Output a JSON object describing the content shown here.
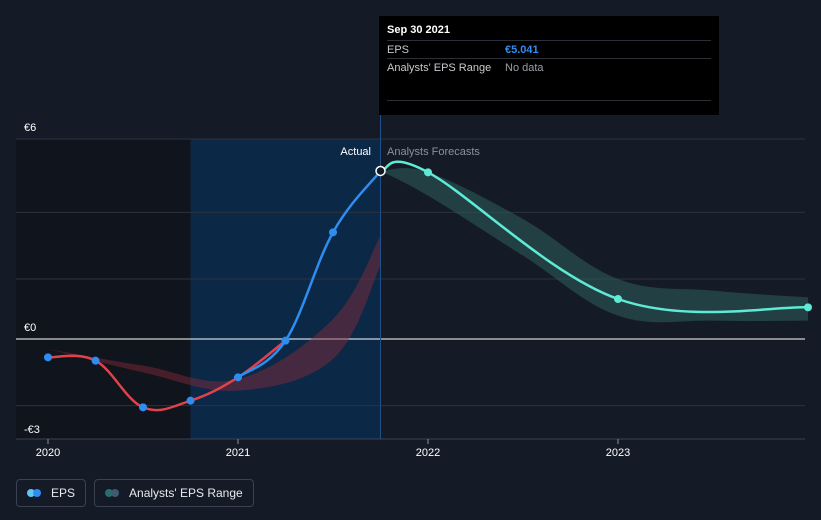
{
  "tooltip": {
    "date": "Sep 30 2021",
    "eps_label": "EPS",
    "eps_value": "€5.041",
    "range_label": "Analysts' EPS Range",
    "range_value": "No data"
  },
  "labels": {
    "actual": "Actual",
    "forecast": "Analysts Forecasts"
  },
  "legend": {
    "eps_label": "EPS",
    "range_label": "Analysts' EPS Range"
  },
  "colors": {
    "background": "#151b26",
    "actual_past": "#e0424b",
    "actual_recent": "#2f8df0",
    "forecast": "#5eead4",
    "highlight_band": "#0b2a4d",
    "past_shade": "#10141c"
  },
  "chart_data": {
    "type": "line",
    "ylim": [
      -3,
      6
    ],
    "y_ticks": [
      {
        "value": 6,
        "label": "€6"
      },
      {
        "value": 0,
        "label": "€0"
      },
      {
        "value": -3,
        "label": "-€3"
      }
    ],
    "x_ticks": [
      {
        "value": 2020.0,
        "label": "2020"
      },
      {
        "value": 2021.0,
        "label": "2021"
      },
      {
        "value": 2022.0,
        "label": "2022"
      },
      {
        "value": 2023.0,
        "label": "2023"
      }
    ],
    "xlim": [
      2019.85,
      2024.0
    ],
    "past_region_end": 2020.75,
    "highlight_start": 2020.75,
    "highlight_end": 2021.75,
    "series": [
      {
        "name": "EPS",
        "x": [
          2020.0,
          2020.25,
          2020.5,
          2020.75,
          2021.0,
          2021.25,
          2021.5,
          2021.75
        ],
        "values": [
          -0.55,
          -0.65,
          -2.05,
          -1.85,
          -1.15,
          -0.05,
          3.2,
          5.041
        ]
      },
      {
        "name": "EPS Forecast",
        "x": [
          2021.75,
          2022.0,
          2023.0,
          2024.0
        ],
        "values": [
          5.041,
          5.0,
          1.2,
          0.95
        ]
      }
    ],
    "forecast_range": {
      "x": [
        2021.75,
        2022.0,
        2022.5,
        2023.0,
        2023.5,
        2024.0
      ],
      "low": [
        5.041,
        4.3,
        2.5,
        0.7,
        0.55,
        0.55
      ],
      "high": [
        5.041,
        5.0,
        3.6,
        1.8,
        1.45,
        1.25
      ]
    },
    "past_range": {
      "x": [
        2020.0,
        2020.5,
        2021.0,
        2021.5,
        2021.75
      ],
      "low": [
        -0.3,
        -1.0,
        -1.55,
        -0.6,
        2.2
      ],
      "high": [
        -0.3,
        -0.8,
        -1.2,
        0.6,
        3.1
      ]
    }
  }
}
